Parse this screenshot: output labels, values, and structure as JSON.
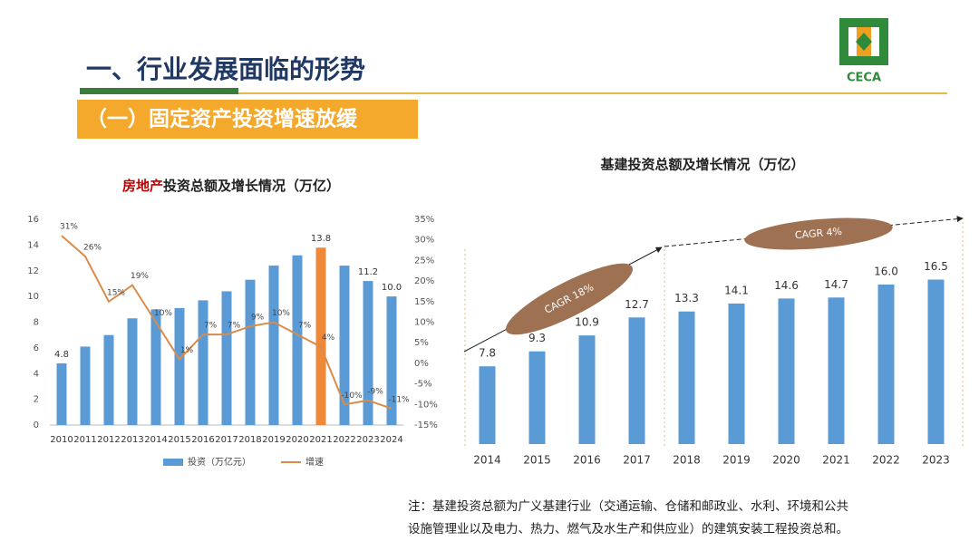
{
  "header": {
    "title": "一、行业发展面临的形势",
    "subtitle": "（一）固定资产投资增速放缓",
    "logo": "CECA"
  },
  "note": {
    "lines": [
      "注：基建投资总额为广义基建行业（交通运输、仓储和邮政业、水利、环境和公共",
      "设施管理业以及电力、热力、燃气及水生产和供应业）的建筑安装工程投资总和。"
    ]
  },
  "chart_data": [
    {
      "type": "combo",
      "title_highlight": "房地产",
      "title": "投资总额及增长情况（万亿）",
      "categories": [
        "2010",
        "2011",
        "2012",
        "2013",
        "2014",
        "2015",
        "2016",
        "2017",
        "2018",
        "2019",
        "2020",
        "2021",
        "2022",
        "2023",
        "2024"
      ],
      "series": [
        {
          "name": "投资（万亿元）",
          "type": "bar",
          "color": "#5b9bd5",
          "colors": [
            "#5b9bd5",
            "#5b9bd5",
            "#5b9bd5",
            "#5b9bd5",
            "#5b9bd5",
            "#5b9bd5",
            "#5b9bd5",
            "#5b9bd5",
            "#5b9bd5",
            "#5b9bd5",
            "#5b9bd5",
            "#f0883a",
            "#5b9bd5",
            "#5b9bd5",
            "#5b9bd5"
          ],
          "values": [
            4.8,
            6.1,
            7.0,
            8.3,
            9.0,
            9.1,
            9.7,
            10.4,
            11.3,
            12.4,
            13.2,
            13.8,
            12.4,
            11.2,
            10.0
          ],
          "value_labels": [
            "4.8",
            null,
            null,
            null,
            null,
            null,
            null,
            null,
            null,
            null,
            null,
            "13.8",
            null,
            "11.2",
            "10.0"
          ]
        },
        {
          "name": "增速",
          "type": "line",
          "axis": "y2",
          "color": "#d98c4a",
          "values": [
            31,
            26,
            15,
            19,
            10,
            1,
            7,
            7,
            9,
            10,
            7,
            4,
            -10,
            -9,
            -11
          ],
          "value_labels": [
            "31%",
            "26%",
            "15%",
            "19%",
            "10%",
            "1%",
            "7%",
            "7%",
            "9%",
            "10%",
            "7%",
            "4%",
            "-10%",
            "-9%",
            "-11%"
          ]
        }
      ],
      "ylim": [
        0,
        16
      ],
      "yticks": [
        0,
        2,
        4,
        6,
        8,
        10,
        12,
        14,
        16
      ],
      "y2lim": [
        -15,
        35
      ],
      "y2ticks": [
        {
          "value": -15,
          "label": "-15%"
        },
        {
          "value": -10,
          "label": "-10%"
        },
        {
          "value": -5,
          "label": "-5%"
        },
        {
          "value": 0,
          "label": "0%"
        },
        {
          "value": 5,
          "label": "5%"
        },
        {
          "value": 10,
          "label": "10%"
        },
        {
          "value": 15,
          "label": "15%"
        },
        {
          "value": 20,
          "label": "20%"
        },
        {
          "value": 25,
          "label": "25%"
        },
        {
          "value": 30,
          "label": "30%"
        },
        {
          "value": 35,
          "label": "35%"
        }
      ],
      "grid": false,
      "legend": "bottom"
    },
    {
      "type": "bar",
      "title": "基建投资总额及增长情况（万亿）",
      "categories": [
        "2014",
        "2015",
        "2016",
        "2017",
        "2018",
        "2019",
        "2020",
        "2021",
        "2022",
        "2023"
      ],
      "values": [
        7.8,
        9.3,
        10.9,
        12.7,
        13.3,
        14.1,
        14.6,
        14.7,
        16.0,
        16.5
      ],
      "value_labels": [
        "7.8",
        "9.3",
        "10.9",
        "12.7",
        "13.3",
        "14.1",
        "14.6",
        "14.7",
        "16.0",
        "16.5"
      ],
      "color": "#5b9bd5",
      "ylim": [
        0,
        18
      ],
      "annotations": [
        "CAGR 18%",
        "CAGR 4%"
      ]
    }
  ]
}
